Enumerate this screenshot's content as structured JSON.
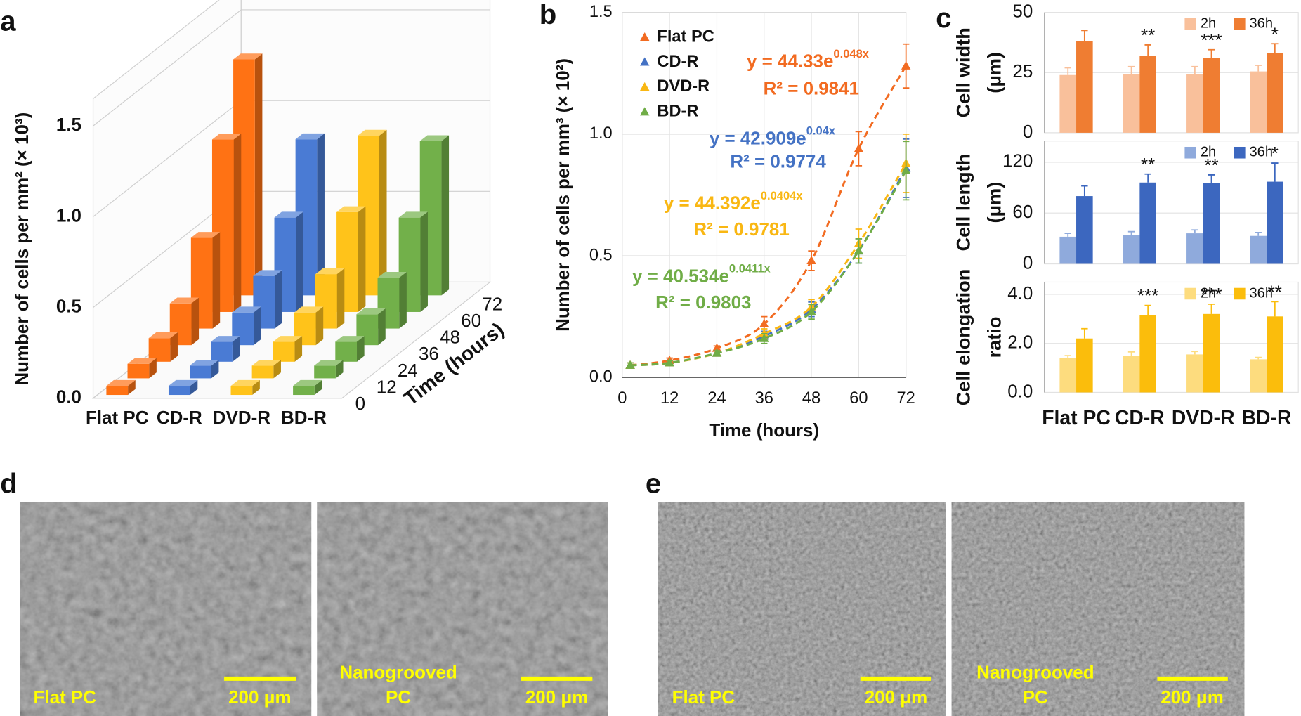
{
  "panels": [
    "a",
    "b",
    "c",
    "d",
    "e"
  ],
  "chart_data": [
    {
      "type": "bar3d",
      "ylabel": "Number of cells per mm² (× 10³)",
      "depth_label": "Time (hours)",
      "depth": [
        0,
        12,
        24,
        36,
        48,
        60,
        72
      ],
      "ylim": [
        0,
        1.65
      ],
      "yticks": [
        {
          "value": 0,
          "label": "0.0"
        },
        {
          "value": 0.5,
          "label": "0.5"
        },
        {
          "value": 1,
          "label": "1.0"
        },
        {
          "value": 1.5,
          "label": "1.5"
        }
      ],
      "series": [
        {
          "name": "Flat PC",
          "color": "#ff7214",
          "values": [
            0.05,
            0.08,
            0.13,
            0.23,
            0.5,
            0.95,
            1.3
          ]
        },
        {
          "name": "CD-R",
          "color": "#4a7bd4",
          "values": [
            0.05,
            0.07,
            0.11,
            0.18,
            0.29,
            0.52,
            0.86
          ]
        },
        {
          "name": "DVD-R",
          "color": "#ffc31a",
          "values": [
            0.05,
            0.07,
            0.11,
            0.18,
            0.3,
            0.55,
            0.88
          ]
        },
        {
          "name": "BD-R",
          "color": "#72b04a",
          "values": [
            0.05,
            0.07,
            0.11,
            0.17,
            0.28,
            0.52,
            0.85
          ]
        }
      ]
    },
    {
      "type": "scatter",
      "xlabel": "Time (hours)",
      "ylabel": "Number of cells per mm³ (× 10²)",
      "x": [
        2,
        12,
        24,
        36,
        48,
        60,
        72
      ],
      "xlim": [
        0,
        72
      ],
      "xticks": [
        0,
        12,
        24,
        36,
        48,
        60,
        72
      ],
      "ylim": [
        0,
        1.5
      ],
      "yticks": [
        {
          "value": 0,
          "label": "0.0"
        },
        {
          "value": 0.5,
          "label": "0.5"
        },
        {
          "value": 1,
          "label": "1.0"
        },
        {
          "value": 1.5,
          "label": "1.5"
        }
      ],
      "grid": true,
      "legend": "upper left",
      "series": [
        {
          "name": "Flat PC",
          "color": "#f26b21",
          "values": [
            0.05,
            0.07,
            0.12,
            0.22,
            0.48,
            0.94,
            1.28
          ],
          "errors": [
            0.01,
            0.01,
            0.01,
            0.03,
            0.04,
            0.07,
            0.09
          ],
          "fit": {
            "equation": "y = 44.33e",
            "exponent": "0.048x",
            "r_squared": "R² = 0.9841"
          }
        },
        {
          "name": "CD-R",
          "color": "#4472c4",
          "values": [
            0.05,
            0.06,
            0.1,
            0.17,
            0.28,
            0.52,
            0.86
          ],
          "errors": [
            0.01,
            0.01,
            0.01,
            0.02,
            0.03,
            0.05,
            0.12
          ],
          "fit": {
            "equation": "y = 42.909e",
            "exponent": "0.04x",
            "r_squared": "R² = 0.9774"
          }
        },
        {
          "name": "DVD-R",
          "color": "#f9b713",
          "values": [
            0.05,
            0.06,
            0.1,
            0.18,
            0.29,
            0.55,
            0.88
          ],
          "errors": [
            0.01,
            0.01,
            0.01,
            0.02,
            0.03,
            0.06,
            0.12
          ],
          "fit": {
            "equation": "y = 44.392e",
            "exponent": "0.0404x",
            "r_squared": "R² = 0.9781"
          }
        },
        {
          "name": "BD-R",
          "color": "#70ad47",
          "values": [
            0.05,
            0.06,
            0.1,
            0.16,
            0.27,
            0.52,
            0.85
          ],
          "errors": [
            0.01,
            0.01,
            0.01,
            0.02,
            0.03,
            0.05,
            0.12
          ],
          "fit": {
            "equation": "y = 40.534e",
            "exponent": "0.0411x",
            "r_squared": "R² = 0.9803"
          }
        }
      ]
    },
    {
      "type": "bar",
      "ylabel": [
        "Cell width",
        "(μm)"
      ],
      "categories": [
        null,
        null,
        null,
        null
      ],
      "ylim": [
        0,
        50
      ],
      "yticks": [
        0,
        25,
        50
      ],
      "grid": true,
      "legend": "upper right",
      "series": [
        {
          "name": "2h",
          "color": "#f9c09b",
          "values": [
            24,
            24.5,
            24.5,
            25.5
          ],
          "errors": [
            3,
            3,
            3,
            2.5
          ]
        },
        {
          "name": "36h",
          "color": "#ef7d32",
          "values": [
            38,
            32,
            31,
            33
          ],
          "errors": [
            4.5,
            4.5,
            3.5,
            4
          ],
          "annotations": [
            null,
            "**",
            "***",
            "*"
          ]
        }
      ]
    },
    {
      "type": "bar",
      "ylabel": [
        "Cell length",
        "(μm)"
      ],
      "categories": [
        null,
        null,
        null,
        null
      ],
      "ylim": [
        0,
        145
      ],
      "yticks": [
        0,
        60,
        120
      ],
      "grid": true,
      "legend": "upper right",
      "series": [
        {
          "name": "2h",
          "color": "#8faadc",
          "values": [
            32,
            34,
            36,
            33
          ],
          "errors": [
            4,
            4,
            4,
            4
          ]
        },
        {
          "name": "36h",
          "color": "#3c67bf",
          "values": [
            80,
            96,
            95,
            97
          ],
          "errors": [
            12,
            10,
            10,
            22
          ],
          "annotations": [
            null,
            "**",
            "**",
            "*"
          ]
        }
      ]
    },
    {
      "type": "bar",
      "ylabel": [
        "Cell elongation",
        "ratio"
      ],
      "categories": [
        "Flat PC",
        "CD-R",
        "DVD-R",
        "BD-R"
      ],
      "ylim": [
        0,
        4.5
      ],
      "yticks": [
        {
          "value": 0,
          "label": "0.0"
        },
        {
          "value": 2,
          "label": "2.0"
        },
        {
          "value": 4,
          "label": "4.0"
        }
      ],
      "grid": true,
      "legend": "upper right",
      "series": [
        {
          "name": "2h",
          "color": "#fddc7e",
          "values": [
            1.4,
            1.5,
            1.55,
            1.35
          ],
          "errors": [
            0.1,
            0.15,
            0.12,
            0.08
          ]
        },
        {
          "name": "36h",
          "color": "#fbbd0c",
          "values": [
            2.2,
            3.15,
            3.2,
            3.1
          ],
          "errors": [
            0.4,
            0.4,
            0.4,
            0.6
          ],
          "annotations": [
            null,
            "***",
            "***",
            "**"
          ]
        }
      ]
    }
  ],
  "images": [
    {
      "label": [
        "Flat PC"
      ],
      "scale_bar": "200 μm"
    },
    {
      "label": [
        "Nanogrooved",
        "PC"
      ],
      "scale_bar": "200 μm"
    },
    {
      "label": [
        "Flat PC"
      ],
      "scale_bar": "200 μm"
    },
    {
      "label": [
        "Nanogrooved",
        "PC"
      ],
      "scale_bar": "200 μm"
    }
  ]
}
